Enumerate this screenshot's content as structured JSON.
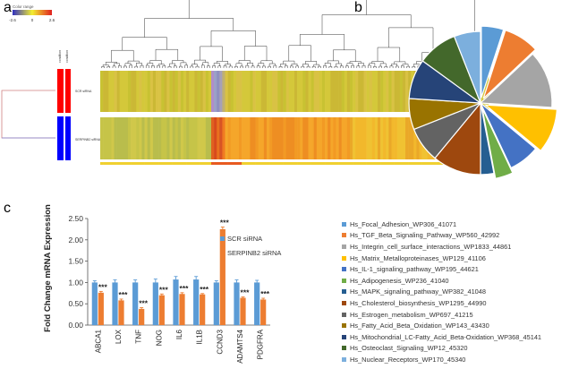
{
  "panels": {
    "a": "a",
    "b": "b",
    "c": "c"
  },
  "heatmap": {
    "color_range_label": "Color range",
    "scale_ticks": [
      "-2.6",
      "0",
      "2.6"
    ],
    "row_labels": [
      "SCR siRNA",
      "SERPINB2 siRNA"
    ],
    "colors": {
      "low": "#3030c0",
      "mid": "#f2ee30",
      "high": "#e02020",
      "group1": "#ff0000",
      "group2": "#0000ff"
    }
  },
  "chart_data": [
    {
      "type": "pie",
      "title": "",
      "slices": [
        {
          "label": "Hs_Focal_Adhesion_WP306_41071",
          "value": 5,
          "color": "#5b9bd5",
          "exploded": true
        },
        {
          "label": "Hs_TGF_Beta_Signaling_Pathway_WP560_42992",
          "value": 8,
          "color": "#ed7d31",
          "exploded": true
        },
        {
          "label": "Hs_Integrin_cell_surface_interactions_WP1833_44861",
          "value": 13,
          "color": "#a5a5a5",
          "exploded": false
        },
        {
          "label": "Hs_Matrix_Metalloproteinases_WP129_41106",
          "value": 10,
          "color": "#ffc000",
          "exploded": true
        },
        {
          "label": "Hs_IL-1_signaling_pathway_WP195_44621",
          "value": 7,
          "color": "#4472c4",
          "exploded": false
        },
        {
          "label": "Hs_Adipogenesis_WP236_41040",
          "value": 4,
          "color": "#70ad47",
          "exploded": true
        },
        {
          "label": "Hs_MAPK_signaling_pathway_WP382_41048",
          "value": 3,
          "color": "#255e91",
          "exploded": false
        },
        {
          "label": "Hs_Cholesterol_biosynthesis_WP1295_44990",
          "value": 11,
          "color": "#9e480e",
          "exploded": false
        },
        {
          "label": "Hs_Estrogen_metabolism_WP697_41215",
          "value": 8,
          "color": "#636363",
          "exploded": false
        },
        {
          "label": "Hs_Fatty_Acid_Beta_Oxidation_WP143_43430",
          "value": 7,
          "color": "#997300",
          "exploded": false
        },
        {
          "label": "Hs_Mitochondrial_LC-Fatty_Acid_Beta-Oxidation_WP368_45141",
          "value": 9,
          "color": "#264478",
          "exploded": false
        },
        {
          "label": "Hs_Osteoclast_Signaling_WP12_45320",
          "value": 9,
          "color": "#43682b",
          "exploded": false
        },
        {
          "label": "Hs_Nuclear_Receptors_WP170_45340",
          "value": 6,
          "color": "#7cafdd",
          "exploded": false
        }
      ]
    },
    {
      "type": "bar",
      "title": "",
      "xlabel": "",
      "ylabel": "Fold Change mRNA Expression",
      "ylim": [
        0,
        2.5
      ],
      "yticks": [
        "0.00",
        "0.50",
        "1.00",
        "1.50",
        "2.00",
        "2.50"
      ],
      "categories": [
        "ABCA1",
        "LOX",
        "TNF",
        "NOG",
        "IL6",
        "IL1B",
        "CCND3",
        "ADAMTS4",
        "PDGFRA"
      ],
      "series": [
        {
          "name": "SCR siRNA",
          "color": "#5b9bd5",
          "values": [
            1.0,
            1.0,
            1.0,
            1.0,
            1.07,
            1.07,
            1.0,
            1.0,
            1.0
          ],
          "errors": [
            0.04,
            0.06,
            0.06,
            0.08,
            0.07,
            0.07,
            0.04,
            0.06,
            0.05
          ]
        },
        {
          "name": "SERPINB2 siRNA",
          "color": "#ed7d31",
          "values": [
            0.76,
            0.58,
            0.38,
            0.7,
            0.73,
            0.72,
            2.25,
            0.64,
            0.6
          ],
          "errors": [
            0.03,
            0.03,
            0.03,
            0.03,
            0.03,
            0.02,
            0.05,
            0.02,
            0.03
          ]
        }
      ],
      "significance": "***",
      "legend_position": "top-right"
    }
  ]
}
